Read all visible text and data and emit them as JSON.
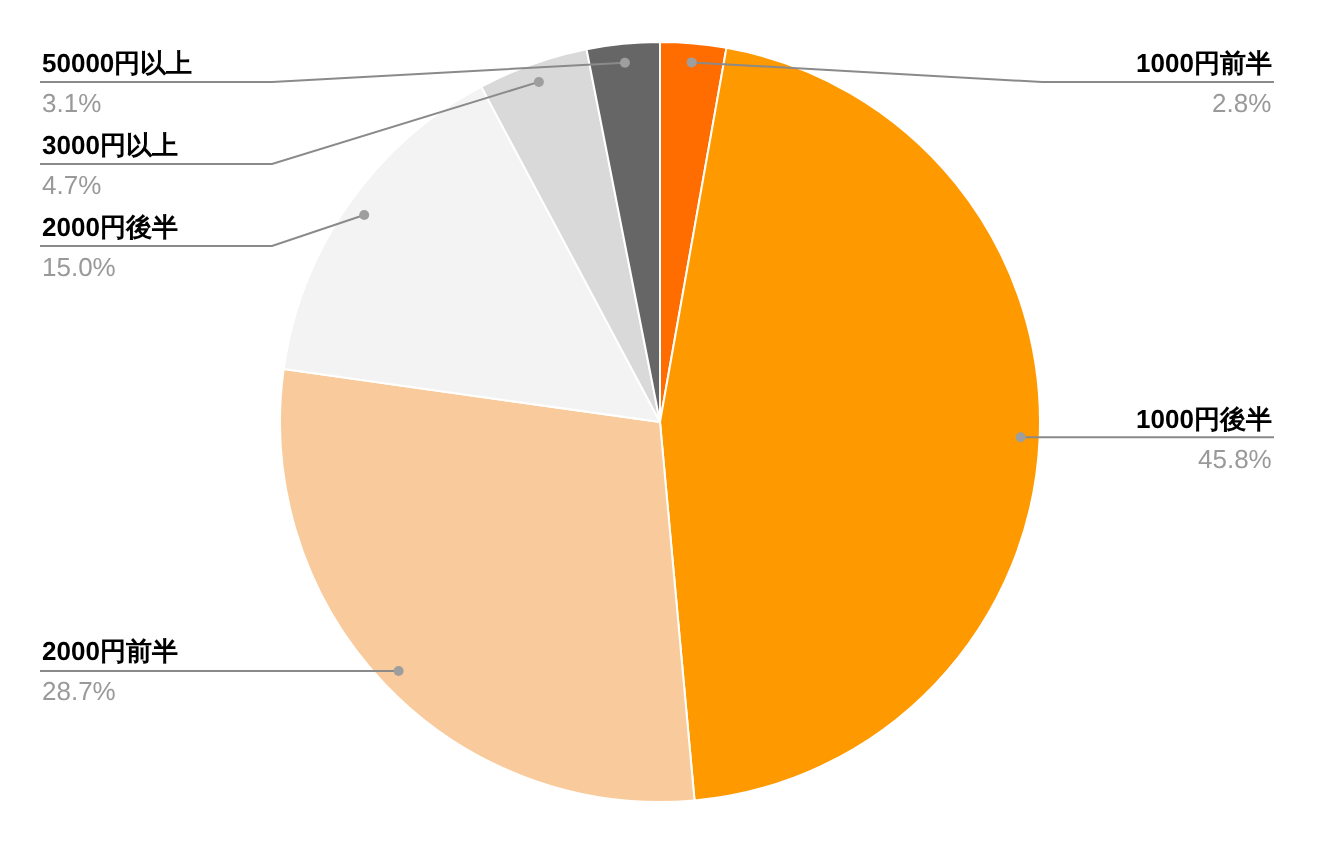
{
  "chart_data": {
    "type": "pie",
    "categories": [
      "1000円前半",
      "1000円後半",
      "2000円前半",
      "2000円後半",
      "3000円以上",
      "50000円以上"
    ],
    "values": [
      2.8,
      45.8,
      28.7,
      15.0,
      4.7,
      3.1
    ],
    "colors": [
      "#ff6d01",
      "#ff9900",
      "#f9cb9c",
      "#f3f3f3",
      "#d9d9d9",
      "#666666"
    ],
    "value_labels": [
      "2.8%",
      "45.8%",
      "28.7%",
      "15.0%",
      "4.7%",
      "3.1%"
    ]
  }
}
